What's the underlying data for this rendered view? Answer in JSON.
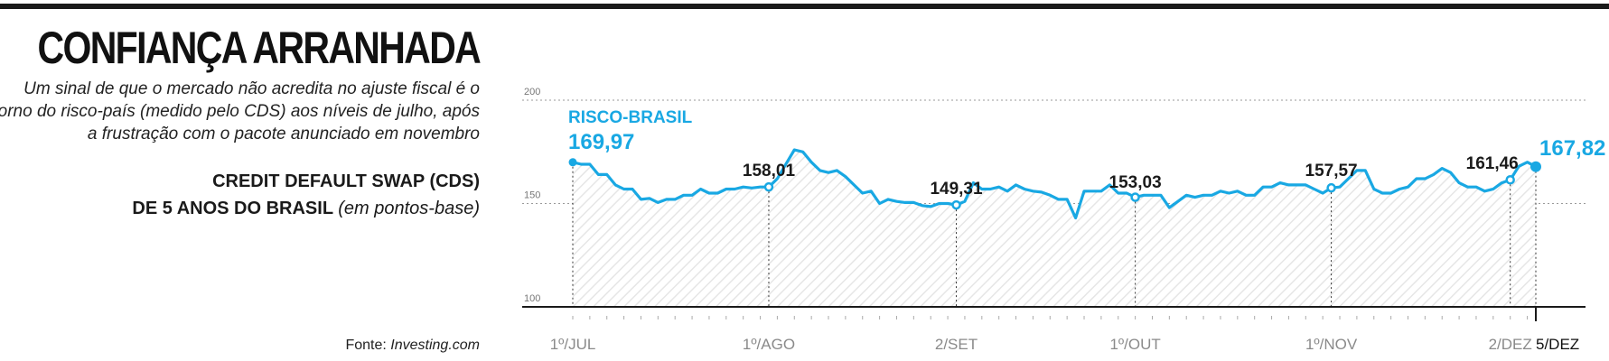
{
  "title": "CONFIANÇA ARRANHADA",
  "subtitle": "Um sinal de que o mercado não acredita no ajuste fiscal é o retorno do risco-país (medido pelo CDS) aos níveis de julho, após a frustração com o pacote anunciado em novembro",
  "series_heading": {
    "line1": "CREDIT DEFAULT SWAP (CDS)",
    "line2": "DE 5 ANOS DO BRASIL",
    "unit": "(em pontos-base)"
  },
  "source": {
    "label": "Fonte:",
    "name": "Investing.com"
  },
  "chart_data": {
    "type": "line",
    "title": "CONFIANÇA ARRANHADA",
    "xlabel": "",
    "ylabel": "",
    "ylim": [
      100,
      200
    ],
    "yticks": [
      {
        "value": 200,
        "label": "200"
      },
      {
        "value": 150,
        "label": "150"
      },
      {
        "value": 100,
        "label": "100"
      }
    ],
    "grid": true,
    "x_ticks": [
      {
        "index": 0,
        "label": "1º/JUL"
      },
      {
        "index": 23,
        "label": "1º/AGO"
      },
      {
        "index": 45,
        "label": "2/SET"
      },
      {
        "index": 66,
        "label": "1º/OUT"
      },
      {
        "index": 89,
        "label": "1º/NOV"
      },
      {
        "index": 110,
        "label": "2/DEZ"
      },
      {
        "index": 113,
        "label": "5/DEZ"
      }
    ],
    "series": [
      {
        "name": "RISCO-BRASIL",
        "color": "#19a8e3",
        "values": [
          169.97,
          169,
          169,
          164,
          164,
          159,
          157,
          157,
          152,
          152.5,
          150.5,
          152,
          152,
          154,
          154,
          157,
          155,
          155,
          157,
          157,
          158,
          157.5,
          158,
          158.01,
          162,
          169,
          176,
          175,
          170,
          166,
          165,
          166,
          163,
          159,
          155,
          156,
          150,
          152,
          151,
          150.5,
          150.5,
          149,
          148.5,
          150,
          150,
          149.31,
          151,
          160,
          157,
          157,
          158,
          156,
          159,
          157,
          156,
          155.5,
          154,
          152,
          152,
          143,
          156,
          156,
          156,
          159,
          155,
          155,
          153.03,
          154,
          154,
          154,
          148,
          151,
          154,
          153,
          154,
          154,
          156,
          155,
          156,
          154,
          154,
          158,
          158,
          160,
          159,
          159,
          159,
          157,
          155,
          157.57,
          158,
          162,
          166,
          166,
          157,
          155,
          155,
          157,
          158,
          162,
          162,
          164,
          167,
          165,
          160,
          158,
          158,
          156,
          157,
          160,
          161.46,
          168,
          170,
          167.82
        ]
      }
    ],
    "annotations": [
      {
        "index": 0,
        "value": 169.97,
        "label": "169,97",
        "highlight": true
      },
      {
        "index": 23,
        "value": 158.01,
        "label": "158,01"
      },
      {
        "index": 45,
        "value": 149.31,
        "label": "149,31"
      },
      {
        "index": 66,
        "value": 153.03,
        "label": "153,03"
      },
      {
        "index": 89,
        "value": 157.57,
        "label": "157,57"
      },
      {
        "index": 110,
        "value": 161.46,
        "label": "161,46"
      },
      {
        "index": 113,
        "value": 167.82,
        "label": "167,82",
        "highlight": true
      }
    ],
    "colors": {
      "line": "#19a8e3",
      "axis": "#1a1a1a",
      "grid": "#9a9a9a",
      "hatch": "#e8e8e8"
    }
  }
}
